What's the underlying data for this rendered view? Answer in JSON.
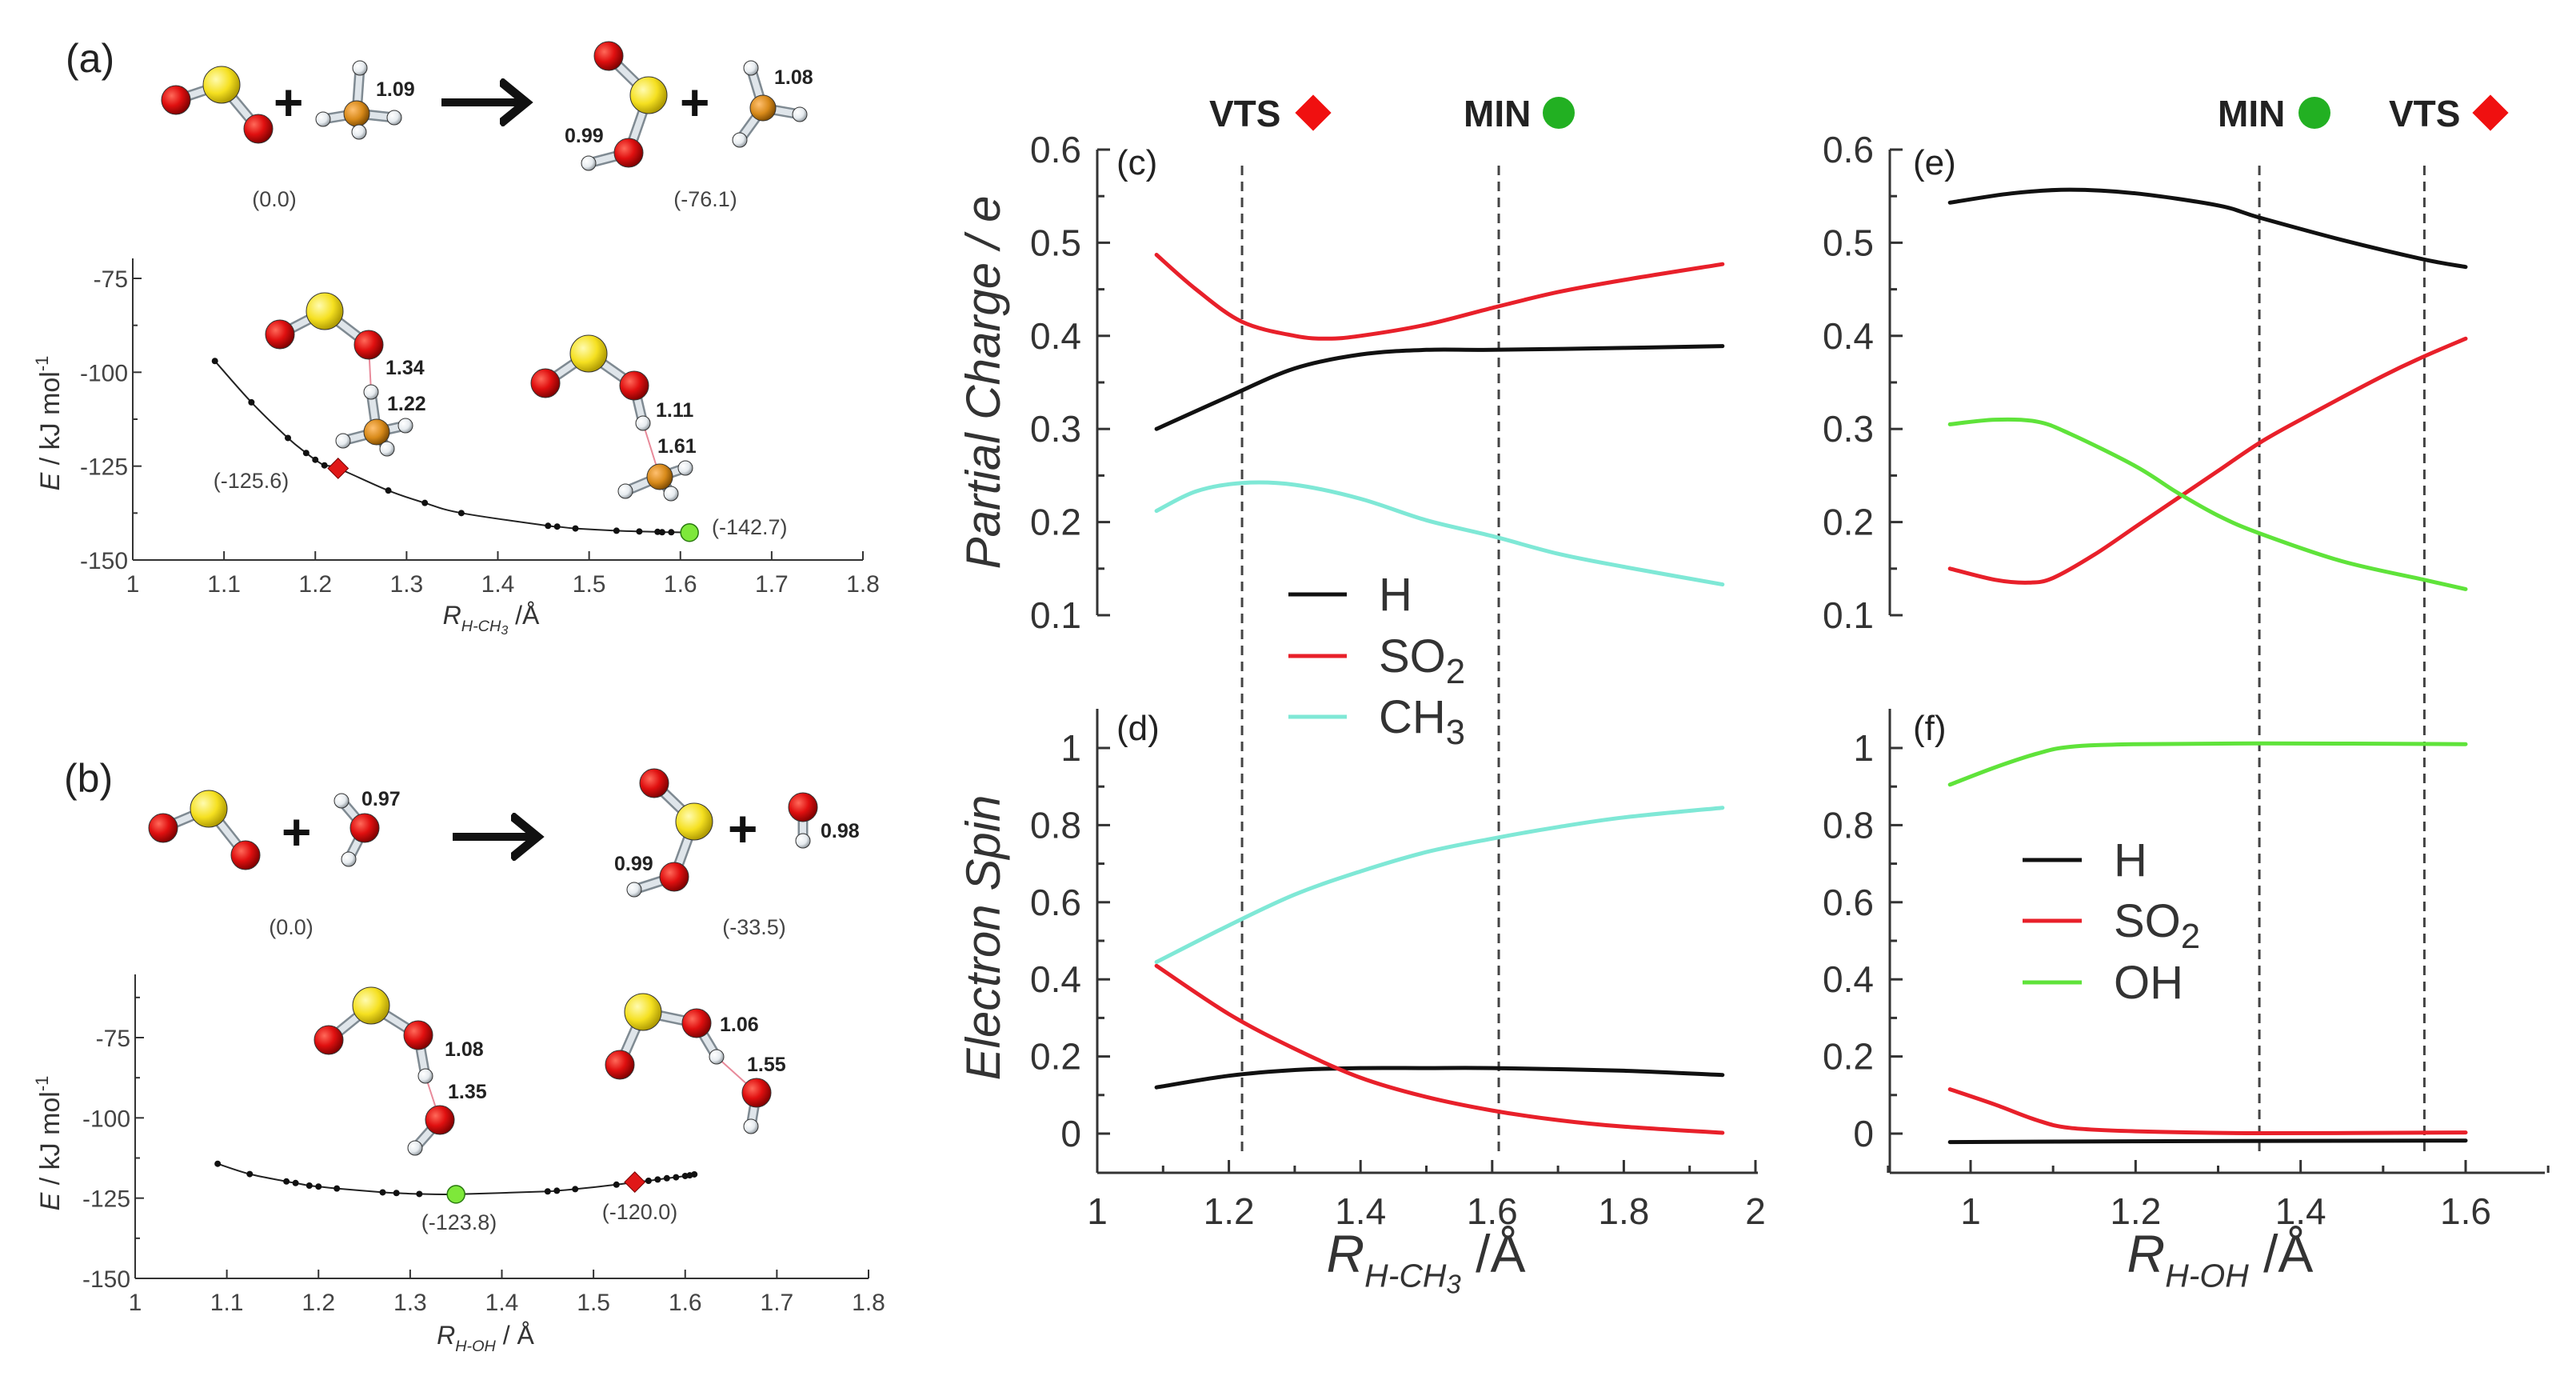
{
  "figure": {
    "panel_labels": {
      "a": "(a)",
      "b": "(b)",
      "c": "(c)",
      "d": "(d)",
      "e": "(e)",
      "f": "(f)"
    },
    "plus": "+",
    "reaction_a": {
      "reactant_energy": "(0.0)",
      "product_energy": "(-76.1)",
      "reactant_bond": "1.09",
      "product_oh_bond": "0.99",
      "product_ch_bond": "1.08"
    },
    "reaction_b": {
      "reactant_energy": "(0.0)",
      "product_energy": "(-33.5)",
      "reactant_bond": "0.97",
      "product_oh_bond": "0.99",
      "product_radical_bond": "0.98"
    },
    "markers": {
      "vts": "VTS",
      "min": "MIN"
    },
    "colors": {
      "H": "#111111",
      "SO2": "#e8202a",
      "CH3": "#7fe8d6",
      "OH": "#5fe33a",
      "vts_marker": "#f01010",
      "min_marker": "#22b022",
      "oxygen": "#e01010",
      "sulfur": "#f5e020",
      "carbon": "#d88a1a",
      "hydrogen": "#eef2f5"
    }
  },
  "chart_data": [
    {
      "id": "a",
      "type": "line",
      "xlabel_parts": [
        "R",
        "H-CH",
        "3",
        " /Å"
      ],
      "ylabel_parts": [
        "E",
        " / kJ mol",
        "-1"
      ],
      "xlim": [
        1,
        1.8
      ],
      "ylim": [
        -150,
        -75
      ],
      "xticks": [
        1,
        1.1,
        1.2,
        1.3,
        1.4,
        1.5,
        1.6,
        1.7,
        1.8
      ],
      "xticklabels": [
        "1",
        "1.1",
        "1.2",
        "1.3",
        "1.4",
        "1.5",
        "1.6",
        "1.7",
        "1.8"
      ],
      "yticks": [
        -150,
        -125,
        -100,
        -75
      ],
      "yticklabels": [
        "-150",
        "-125",
        "-100",
        "-75"
      ],
      "series": [
        {
          "x": [
            1.09,
            1.13,
            1.17,
            1.19,
            1.2,
            1.21,
            1.225,
            1.28,
            1.32,
            1.36,
            1.455,
            1.465,
            1.485,
            1.53,
            1.555,
            1.575,
            1.58,
            1.59,
            1.61
          ],
          "y": [
            -97,
            -108,
            -117.5,
            -121.5,
            -123.3,
            -124.8,
            -125.6,
            -131.5,
            -134.8,
            -137.5,
            -140.9,
            -141.1,
            -141.6,
            -142.2,
            -142.4,
            -142.5,
            -142.6,
            -142.6,
            -142.7
          ]
        }
      ],
      "markers": [
        {
          "type": "VTS",
          "x": 1.225,
          "y": -125.6,
          "label": "(-125.6)"
        },
        {
          "type": "MIN",
          "x": 1.61,
          "y": -142.7,
          "label": "(-142.7)"
        }
      ],
      "inset_bond_labels": {
        "vts": [
          "1.34",
          "1.22"
        ],
        "min": [
          "1.11",
          "1.61"
        ]
      }
    },
    {
      "id": "b",
      "type": "line",
      "xlabel_parts": [
        "R",
        "H-OH",
        "",
        " / Å"
      ],
      "ylabel_parts": [
        "E",
        " / kJ mol",
        "-1"
      ],
      "xlim": [
        1,
        1.8
      ],
      "ylim": [
        -150,
        -75
      ],
      "xticks": [
        1,
        1.1,
        1.2,
        1.3,
        1.4,
        1.5,
        1.6,
        1.7,
        1.8
      ],
      "xticklabels": [
        "1",
        "1.1",
        "1.2",
        "1.3",
        "1.4",
        "1.5",
        "1.6",
        "1.7",
        "1.8"
      ],
      "yticks": [
        -150,
        -125,
        -100,
        -75
      ],
      "yticklabels": [
        "-150",
        "-125",
        "-100",
        "-75"
      ],
      "series": [
        {
          "x": [
            1.09,
            1.125,
            1.165,
            1.175,
            1.19,
            1.2,
            1.22,
            1.27,
            1.285,
            1.31,
            1.35,
            1.45,
            1.46,
            1.48,
            1.525,
            1.545,
            1.56,
            1.57,
            1.58,
            1.59,
            1.6,
            1.605,
            1.61
          ],
          "y": [
            -114.3,
            -117.5,
            -119.8,
            -120.3,
            -121.1,
            -121.4,
            -122,
            -123.2,
            -123.4,
            -123.7,
            -123.8,
            -122.9,
            -122.7,
            -122.2,
            -120.8,
            -120.0,
            -119.6,
            -119.2,
            -118.8,
            -118.5,
            -118.1,
            -117.9,
            -117.6
          ]
        }
      ],
      "markers": [
        {
          "type": "MIN",
          "x": 1.35,
          "y": -123.8,
          "label": "(-123.8)"
        },
        {
          "type": "VTS",
          "x": 1.545,
          "y": -120.0,
          "label": "(-120.0)"
        }
      ],
      "inset_bond_labels": {
        "min": [
          "1.08",
          "1.35"
        ],
        "vts": [
          "1.06",
          "1.55"
        ]
      }
    },
    {
      "id": "c",
      "type": "line",
      "ylabel": "Partial Charge / e",
      "xlim": [
        1,
        2
      ],
      "ylim": [
        0.1,
        0.6
      ],
      "yticks": [
        0.1,
        0.2,
        0.3,
        0.4,
        0.5,
        0.6
      ],
      "yticklabels": [
        "0.1",
        "0.2",
        "0.3",
        "0.4",
        "0.5",
        "0.6"
      ],
      "vlines": [
        {
          "x": 1.22,
          "label": "VTS"
        },
        {
          "x": 1.61,
          "label": "MIN"
        }
      ],
      "series": [
        {
          "name": "H",
          "color": "#111111",
          "x": [
            1.09,
            1.2,
            1.3,
            1.4,
            1.5,
            1.6,
            1.8,
            1.95
          ],
          "y": [
            0.3,
            0.335,
            0.365,
            0.38,
            0.385,
            0.385,
            0.387,
            0.389
          ]
        },
        {
          "name": "SO2",
          "color": "#e8202a",
          "x": [
            1.09,
            1.15,
            1.22,
            1.3,
            1.35,
            1.4,
            1.5,
            1.6,
            1.7,
            1.8,
            1.95
          ],
          "y": [
            0.487,
            0.45,
            0.415,
            0.4,
            0.397,
            0.4,
            0.412,
            0.43,
            0.447,
            0.46,
            0.477
          ]
        },
        {
          "name": "CH3",
          "color": "#7fe8d6",
          "x": [
            1.09,
            1.15,
            1.22,
            1.3,
            1.4,
            1.5,
            1.6,
            1.7,
            1.8,
            1.95
          ],
          "y": [
            0.212,
            0.233,
            0.242,
            0.24,
            0.225,
            0.202,
            0.185,
            0.166,
            0.152,
            0.133
          ]
        }
      ],
      "legend": true
    },
    {
      "id": "d",
      "type": "line",
      "ylabel": "Electron Spin",
      "xlabel_parts": [
        "R",
        "H-CH",
        "3",
        " /Å"
      ],
      "xlim": [
        1,
        2
      ],
      "ylim": [
        0,
        1
      ],
      "xticks": [
        1,
        1.2,
        1.4,
        1.6,
        1.8,
        2
      ],
      "xticklabels": [
        "1",
        "1.2",
        "1.4",
        "1.6",
        "1.8",
        "2"
      ],
      "yticks": [
        0,
        0.2,
        0.4,
        0.6,
        0.8,
        1
      ],
      "yticklabels": [
        "0",
        "0.2",
        "0.4",
        "0.6",
        "0.8",
        "1"
      ],
      "series": [
        {
          "name": "H",
          "color": "#111111",
          "x": [
            1.09,
            1.2,
            1.3,
            1.4,
            1.5,
            1.6,
            1.8,
            1.95
          ],
          "y": [
            0.12,
            0.15,
            0.165,
            0.17,
            0.17,
            0.17,
            0.163,
            0.152
          ]
        },
        {
          "name": "SO2",
          "color": "#e8202a",
          "x": [
            1.09,
            1.2,
            1.3,
            1.4,
            1.5,
            1.6,
            1.7,
            1.8,
            1.95
          ],
          "y": [
            0.435,
            0.31,
            0.22,
            0.145,
            0.095,
            0.06,
            0.035,
            0.018,
            0.002
          ]
        },
        {
          "name": "CH3",
          "color": "#7fe8d6",
          "x": [
            1.09,
            1.2,
            1.3,
            1.4,
            1.5,
            1.6,
            1.7,
            1.8,
            1.95
          ],
          "y": [
            0.445,
            0.54,
            0.62,
            0.68,
            0.73,
            0.765,
            0.795,
            0.82,
            0.845
          ]
        }
      ]
    },
    {
      "id": "e",
      "type": "line",
      "xlim": [
        1,
        1.6
      ],
      "ylim": [
        0.1,
        0.6
      ],
      "yticks": [
        0.1,
        0.2,
        0.3,
        0.4,
        0.5,
        0.6
      ],
      "yticklabels": [
        "0.1",
        "0.2",
        "0.3",
        "0.4",
        "0.5",
        "0.6"
      ],
      "vlines": [
        {
          "x": 1.35,
          "label": "MIN"
        },
        {
          "x": 1.55,
          "label": "VTS"
        }
      ],
      "series": [
        {
          "name": "H",
          "color": "#111111",
          "x": [
            0.975,
            1.05,
            1.12,
            1.2,
            1.3,
            1.35,
            1.45,
            1.55,
            1.6
          ],
          "y": [
            0.543,
            0.553,
            0.557,
            0.553,
            0.54,
            0.527,
            0.503,
            0.482,
            0.474
          ]
        },
        {
          "name": "SO2",
          "color": "#e8202a",
          "x": [
            0.975,
            1.03,
            1.07,
            1.1,
            1.15,
            1.2,
            1.25,
            1.3,
            1.35,
            1.4,
            1.5,
            1.55,
            1.6
          ],
          "y": [
            0.15,
            0.138,
            0.135,
            0.14,
            0.165,
            0.195,
            0.225,
            0.255,
            0.285,
            0.31,
            0.357,
            0.378,
            0.397
          ]
        },
        {
          "name": "OH",
          "color": "#5fe33a",
          "x": [
            0.975,
            1.03,
            1.08,
            1.12,
            1.2,
            1.25,
            1.3,
            1.35,
            1.45,
            1.55,
            1.6
          ],
          "y": [
            0.305,
            0.31,
            0.308,
            0.295,
            0.26,
            0.232,
            0.207,
            0.188,
            0.158,
            0.138,
            0.128
          ]
        }
      ]
    },
    {
      "id": "f",
      "type": "line",
      "xlabel_parts": [
        "R",
        "H-OH",
        "",
        " /Å"
      ],
      "xlim": [
        1,
        1.6
      ],
      "ylim": [
        0,
        1
      ],
      "xticks": [
        1,
        1.2,
        1.4,
        1.6
      ],
      "xticklabels": [
        "1",
        "1.2",
        "1.4",
        "1.6"
      ],
      "yticks": [
        0,
        0.2,
        0.4,
        0.6,
        0.8,
        1
      ],
      "yticklabels": [
        "0",
        "0.2",
        "0.4",
        "0.6",
        "0.8",
        "1"
      ],
      "series": [
        {
          "name": "H",
          "color": "#111111",
          "x": [
            0.975,
            1.2,
            1.6
          ],
          "y": [
            -0.022,
            -0.02,
            -0.018
          ]
        },
        {
          "name": "SO2",
          "color": "#e8202a",
          "x": [
            0.975,
            1.03,
            1.08,
            1.12,
            1.2,
            1.35,
            1.6
          ],
          "y": [
            0.115,
            0.075,
            0.035,
            0.015,
            0.006,
            0.001,
            0.003
          ]
        },
        {
          "name": "OH",
          "color": "#5fe33a",
          "x": [
            0.975,
            1.03,
            1.08,
            1.12,
            1.2,
            1.35,
            1.6
          ],
          "y": [
            0.905,
            0.95,
            0.985,
            1.003,
            1.01,
            1.012,
            1.01
          ]
        }
      ],
      "legend": true
    }
  ]
}
